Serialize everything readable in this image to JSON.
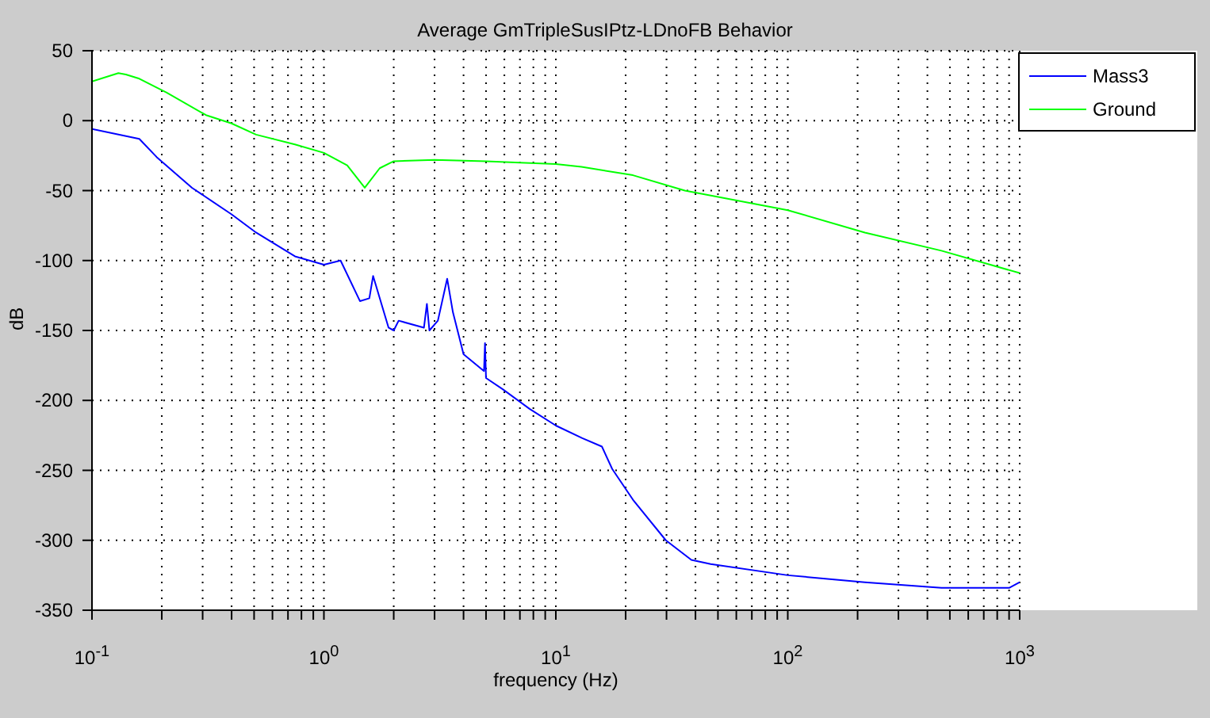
{
  "chart_data": {
    "type": "line",
    "title": "Average GmTripleSusIPtz-LDnoFB Behavior",
    "xlabel": "frequency (Hz)",
    "ylabel": "dB",
    "log": "x",
    "grid": true,
    "legend": "top right",
    "marker": "none",
    "line_style": "solid",
    "xlim": [
      0.1,
      1000
    ],
    "ylim": [
      -350,
      50
    ],
    "xticks": [
      {
        "value": 0.1,
        "label": "10$^{-1}$"
      },
      {
        "value": 0.2,
        "label": null
      },
      {
        "value": 0.3,
        "label": null
      },
      {
        "value": 0.4,
        "label": null
      },
      {
        "value": 0.5,
        "label": null
      },
      {
        "value": 0.6,
        "label": null
      },
      {
        "value": 0.7,
        "label": null
      },
      {
        "value": 0.8,
        "label": null
      },
      {
        "value": 0.9,
        "label": null
      },
      {
        "value": 1,
        "label": "10$^{0}$"
      },
      {
        "value": 2,
        "label": null
      },
      {
        "value": 3,
        "label": null
      },
      {
        "value": 4,
        "label": null
      },
      {
        "value": 5,
        "label": null
      },
      {
        "value": 6,
        "label": null
      },
      {
        "value": 7,
        "label": null
      },
      {
        "value": 8,
        "label": null
      },
      {
        "value": 9,
        "label": null
      },
      {
        "value": 10,
        "label": "10$^{1}$"
      },
      {
        "value": 20,
        "label": null
      },
      {
        "value": 30,
        "label": null
      },
      {
        "value": 40,
        "label": null
      },
      {
        "value": 50,
        "label": null
      },
      {
        "value": 60,
        "label": null
      },
      {
        "value": 70,
        "label": null
      },
      {
        "value": 80,
        "label": null
      },
      {
        "value": 90,
        "label": null
      },
      {
        "value": 100,
        "label": "10$^{2}$"
      },
      {
        "value": 200,
        "label": null
      },
      {
        "value": 300,
        "label": null
      },
      {
        "value": 400,
        "label": null
      },
      {
        "value": 500,
        "label": null
      },
      {
        "value": 600,
        "label": null
      },
      {
        "value": 700,
        "label": null
      },
      {
        "value": 800,
        "label": null
      },
      {
        "value": 900,
        "label": null
      },
      {
        "value": 1000,
        "label": "10$^{3}$"
      }
    ],
    "yticks": [
      -350,
      -300,
      -250,
      -200,
      -150,
      -100,
      -50,
      0,
      50
    ],
    "series": [
      {
        "name": "Mass3",
        "color": "#0000ff",
        "x": [
          0.1,
          0.16,
          0.19,
          0.27,
          0.4,
          0.51,
          0.75,
          1.0,
          1.18,
          1.43,
          1.57,
          1.63,
          1.9,
          2.0,
          2.1,
          2.7,
          2.78,
          2.85,
          3.1,
          3.4,
          3.6,
          4.0,
          4.9,
          4.95,
          5.0,
          5.9,
          7.7,
          10,
          13,
          15.8,
          17.5,
          21.5,
          29.8,
          38.4,
          46.5,
          100,
          215,
          460,
          900,
          1000
        ],
        "values": [
          -6,
          -13,
          -26,
          -48,
          -67,
          -80,
          -97,
          -103,
          -100,
          -129,
          -127,
          -111,
          -148,
          -150,
          -143,
          -148,
          -131,
          -150,
          -143,
          -113,
          -137,
          -167,
          -179,
          -159,
          -184,
          -192,
          -206,
          -218,
          -227,
          -233,
          -249,
          -271,
          -300,
          -314,
          -317,
          -325,
          -330,
          -334,
          -334,
          -330
        ]
      },
      {
        "name": "Ground",
        "color": "#00ff00",
        "x": [
          0.1,
          0.13,
          0.14,
          0.16,
          0.21,
          0.31,
          0.4,
          0.51,
          0.75,
          1.0,
          1.26,
          1.5,
          1.74,
          2.0,
          3,
          5,
          7,
          10,
          12.9,
          21.5,
          36,
          100,
          215,
          460,
          1000
        ],
        "values": [
          28,
          34,
          33,
          30,
          20,
          4,
          -2,
          -10,
          -17,
          -23,
          -32,
          -48,
          -34,
          -29,
          -28,
          -29,
          -30,
          -31,
          -33,
          -39,
          -50,
          -64,
          -80,
          -93,
          -109
        ]
      }
    ]
  }
}
